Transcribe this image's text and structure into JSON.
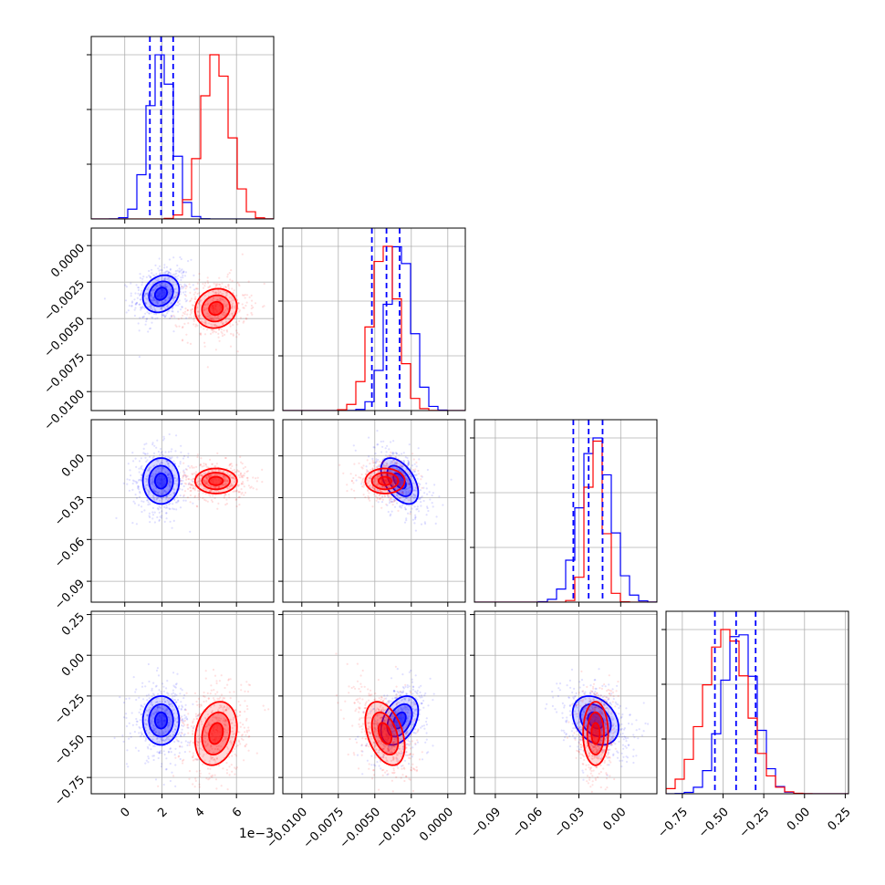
{
  "chart_data": {
    "type": "corner",
    "grid": true,
    "series": [
      {
        "color": "#0000ff",
        "mean": [
          0.00195,
          -0.0033,
          -0.018,
          -0.4
        ],
        "std": [
          0.00065,
          0.00085,
          0.011,
          0.1
        ],
        "corr_1_0": 0.2,
        "corr_2_0": 0.0,
        "corr_2_1": -0.5,
        "corr_3_0": 0.0,
        "corr_3_1": 0.4,
        "corr_3_2": -0.3
      },
      {
        "color": "#ff0000",
        "mean": [
          0.0049,
          -0.0043,
          -0.018,
          -0.48
        ],
        "std": [
          0.00075,
          0.0009,
          0.006,
          0.13
        ],
        "corr_1_0": 0.1,
        "corr_2_0": 0.0,
        "corr_2_1": 0.0,
        "corr_3_0": 0.2,
        "corr_3_1": -0.4,
        "corr_3_2": 0.0
      }
    ],
    "quantile_lines": {
      "color": "#0000ff",
      "values": [
        [
          0.00135,
          0.00195,
          0.0026
        ],
        [
          -0.0052,
          -0.0042,
          -0.0033
        ],
        [
          -0.034,
          -0.023,
          -0.013
        ],
        [
          -0.55,
          -0.42,
          -0.3
        ]
      ]
    },
    "axes": [
      {
        "range": [
          -0.0018,
          0.008
        ],
        "ticks": [
          0,
          0.002,
          0.004,
          0.006
        ],
        "tick_labels": [
          "0",
          "2",
          "4",
          "6"
        ],
        "offset_label": "1e−3"
      },
      {
        "range": [
          -0.0113,
          0.0012
        ],
        "ticks": [
          -0.01,
          -0.0075,
          -0.005,
          -0.0025,
          0.0
        ],
        "tick_labels": [
          "−0.0100",
          "−0.0075",
          "−0.0050",
          "−0.0025",
          "0.0000"
        ]
      },
      {
        "range": [
          -0.105,
          0.026
        ],
        "ticks": [
          -0.09,
          -0.06,
          -0.03,
          0.0
        ],
        "tick_labels": [
          "−0.09",
          "−0.06",
          "−0.03",
          "0.00"
        ]
      },
      {
        "range": [
          -0.85,
          0.27
        ],
        "ticks": [
          -0.75,
          -0.5,
          -0.25,
          0.0,
          0.25
        ],
        "tick_labels": [
          "−0.75",
          "−0.50",
          "−0.25",
          "0.00",
          "0.25"
        ]
      }
    ],
    "contour_levels_sigma": [
      0.5,
      1.0,
      1.5
    ]
  }
}
